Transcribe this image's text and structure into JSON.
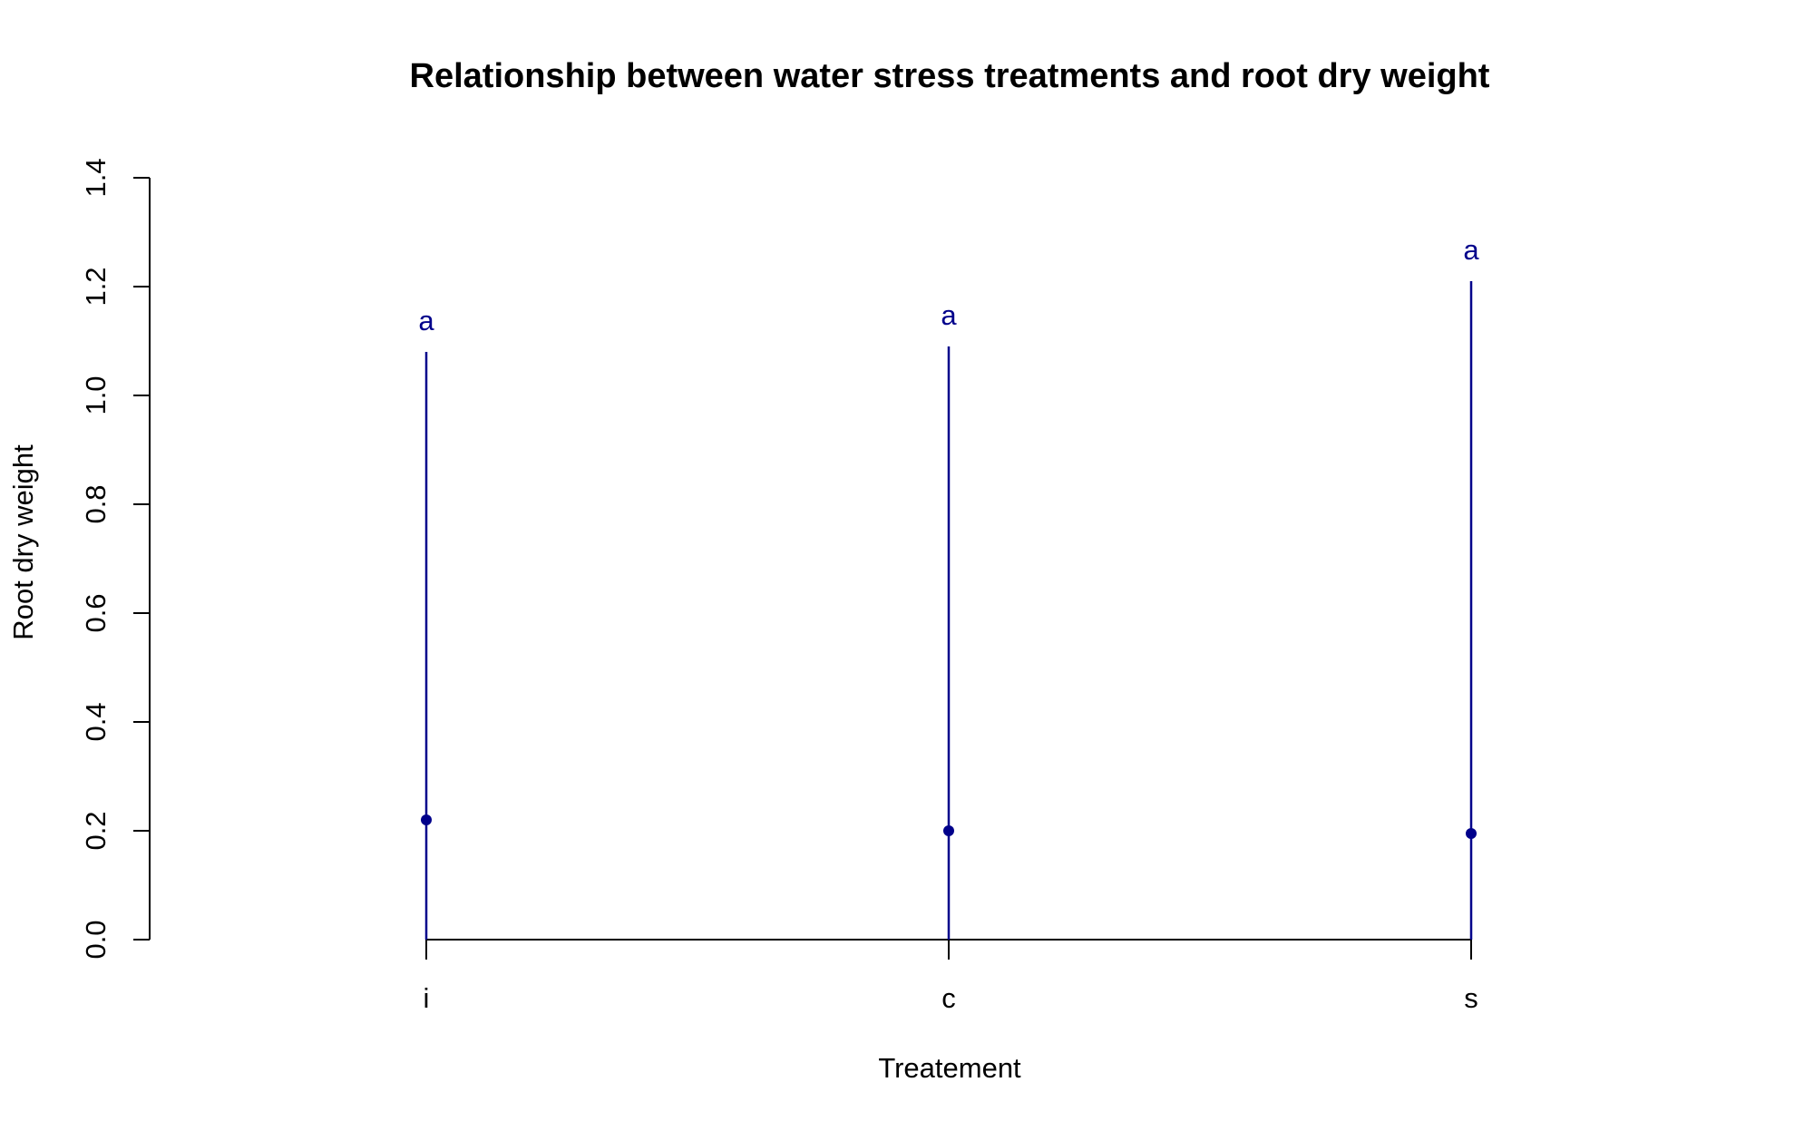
{
  "chart_data": {
    "type": "scatter",
    "title": "Relationship between water stress treatments and root dry weight",
    "xlabel": "Treatement",
    "ylabel": "Root dry weight",
    "categories": [
      "i",
      "c",
      "s"
    ],
    "series": [
      {
        "values": [
          0.22,
          0.2,
          0.195
        ],
        "upper": [
          1.08,
          1.09,
          1.21
        ],
        "lower": [
          0.0,
          0.0,
          0.0
        ],
        "letters": [
          "a",
          "a",
          "a"
        ]
      }
    ],
    "ylim": [
      0,
      1.4
    ],
    "yticks": [
      "0.0",
      "0.2",
      "0.4",
      "0.6",
      "0.8",
      "1.0",
      "1.2",
      "1.4"
    ],
    "grid": false,
    "legend": "none",
    "colors": {
      "series": "#00008B",
      "axis": "#000000"
    }
  }
}
